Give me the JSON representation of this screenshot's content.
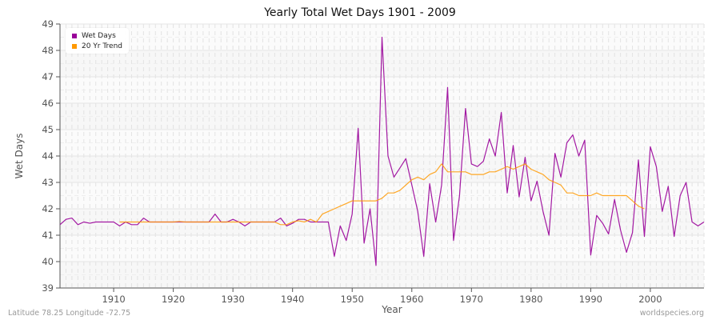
{
  "chart": {
    "title": "Yearly Total Wet Days 1901 - 2009",
    "xlabel": "Year",
    "ylabel": "Wet Days",
    "footer_left": "Latitude 78.25 Longitude -72.75",
    "footer_right": "worldspecies.org",
    "legend": [
      {
        "label": "Wet Days",
        "color": "#990099"
      },
      {
        "label": "20 Yr Trend",
        "color": "#ff9900"
      }
    ]
  },
  "chart_data": {
    "type": "line",
    "title": "Yearly Total Wet Days 1901 - 2009",
    "xlabel": "Year",
    "ylabel": "Wet Days",
    "ylim": [
      39,
      49
    ],
    "xlim": [
      1901,
      2009
    ],
    "yticks": [
      39,
      40,
      41,
      42,
      43,
      44,
      45,
      46,
      47,
      48,
      49
    ],
    "xticks": [
      1910,
      1920,
      1930,
      1940,
      1950,
      1960,
      1970,
      1980,
      1990,
      2000
    ],
    "grid": true,
    "legend_position": "top-left",
    "series": [
      {
        "name": "Wet Days",
        "color": "#990099",
        "x_start": 1901,
        "values": [
          41.4,
          41.6,
          41.65,
          41.4,
          41.5,
          41.45,
          41.5,
          41.5,
          41.5,
          41.5,
          41.35,
          41.5,
          41.4,
          41.4,
          41.65,
          41.5,
          41.5,
          41.5,
          41.5,
          41.5,
          41.5,
          41.5,
          41.5,
          41.5,
          41.5,
          41.5,
          41.8,
          41.5,
          41.5,
          41.6,
          41.5,
          41.35,
          41.5,
          41.5,
          41.5,
          41.5,
          41.5,
          41.65,
          41.35,
          41.45,
          41.6,
          41.6,
          41.5,
          41.5,
          41.5,
          41.5,
          40.2,
          41.35,
          40.8,
          41.8,
          45.05,
          40.7,
          42.0,
          39.85,
          48.5,
          44.0,
          43.2,
          43.55,
          43.9,
          42.9,
          41.9,
          40.2,
          42.95,
          41.5,
          42.9,
          46.6,
          40.8,
          42.5,
          45.8,
          43.7,
          43.6,
          43.8,
          44.65,
          44.0,
          45.65,
          42.6,
          44.4,
          42.45,
          43.95,
          42.3,
          43.05,
          41.9,
          41.0,
          44.1,
          43.2,
          44.5,
          44.8,
          44.0,
          44.6,
          40.25,
          41.75,
          41.45,
          41.05,
          42.35,
          41.2,
          40.35,
          41.1,
          43.85,
          40.95,
          44.35,
          43.6,
          41.9,
          42.85,
          40.95,
          42.5,
          43.0,
          41.5,
          41.35,
          41.5
        ]
      },
      {
        "name": "20 Yr Trend",
        "color": "#ff9900",
        "x_start": 1911,
        "values": [
          41.5,
          41.5,
          41.5,
          41.5,
          41.5,
          41.5,
          41.5,
          41.5,
          41.5,
          41.5,
          41.52,
          41.5,
          41.5,
          41.5,
          41.5,
          41.5,
          41.5,
          41.5,
          41.5,
          41.5,
          41.5,
          41.5,
          41.5,
          41.5,
          41.5,
          41.5,
          41.5,
          41.4,
          41.4,
          41.5,
          41.55,
          41.5,
          41.6,
          41.5,
          41.8,
          41.9,
          42.0,
          42.1,
          42.2,
          42.3,
          42.3,
          42.3,
          42.3,
          42.3,
          42.4,
          42.6,
          42.6,
          42.7,
          42.9,
          43.1,
          43.2,
          43.1,
          43.3,
          43.4,
          43.7,
          43.4,
          43.4,
          43.4,
          43.4,
          43.3,
          43.3,
          43.3,
          43.4,
          43.4,
          43.5,
          43.6,
          43.5,
          43.6,
          43.7,
          43.5,
          43.4,
          43.3,
          43.1,
          43.0,
          42.9,
          42.6,
          42.6,
          42.5,
          42.5,
          42.5,
          42.6,
          42.5,
          42.5,
          42.5,
          42.5,
          42.5,
          42.3,
          42.1,
          42.0
        ]
      }
    ]
  }
}
